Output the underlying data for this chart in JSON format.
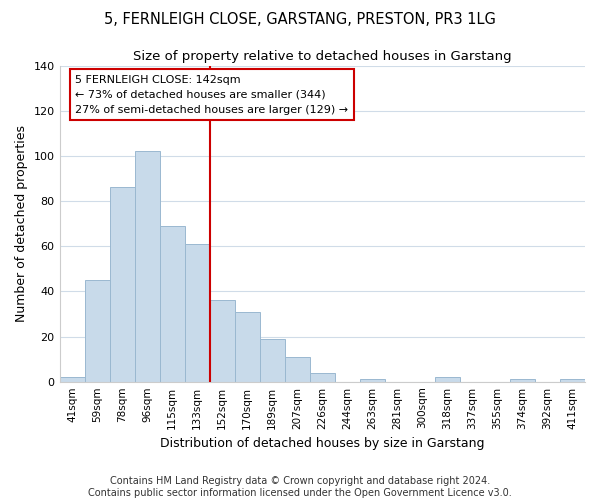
{
  "title": "5, FERNLEIGH CLOSE, GARSTANG, PRESTON, PR3 1LG",
  "subtitle": "Size of property relative to detached houses in Garstang",
  "xlabel": "Distribution of detached houses by size in Garstang",
  "ylabel": "Number of detached properties",
  "categories": [
    "41sqm",
    "59sqm",
    "78sqm",
    "96sqm",
    "115sqm",
    "133sqm",
    "152sqm",
    "170sqm",
    "189sqm",
    "207sqm",
    "226sqm",
    "244sqm",
    "263sqm",
    "281sqm",
    "300sqm",
    "318sqm",
    "337sqm",
    "355sqm",
    "374sqm",
    "392sqm",
    "411sqm"
  ],
  "values": [
    2,
    45,
    86,
    102,
    69,
    61,
    36,
    31,
    19,
    11,
    4,
    0,
    1,
    0,
    0,
    2,
    0,
    0,
    1,
    0,
    1
  ],
  "bar_color": "#c8daea",
  "bar_edge_color": "#9ab8d0",
  "annotation_text": "5 FERNLEIGH CLOSE: 142sqm\n← 73% of detached houses are smaller (344)\n27% of semi-detached houses are larger (129) →",
  "annotation_box_color": "#ffffff",
  "annotation_box_edge": "#cc0000",
  "vline_color": "#cc0000",
  "vline_x": 5.5,
  "ylim": [
    0,
    140
  ],
  "yticks": [
    0,
    20,
    40,
    60,
    80,
    100,
    120,
    140
  ],
  "footer": "Contains HM Land Registry data © Crown copyright and database right 2024.\nContains public sector information licensed under the Open Government Licence v3.0.",
  "bg_color": "#ffffff",
  "plot_bg_color": "#ffffff",
  "grid_color": "#d0dce8",
  "title_fontsize": 10.5,
  "subtitle_fontsize": 9.5,
  "axis_label_fontsize": 9,
  "tick_fontsize": 7.5,
  "footer_fontsize": 7,
  "annotation_fontsize": 8
}
